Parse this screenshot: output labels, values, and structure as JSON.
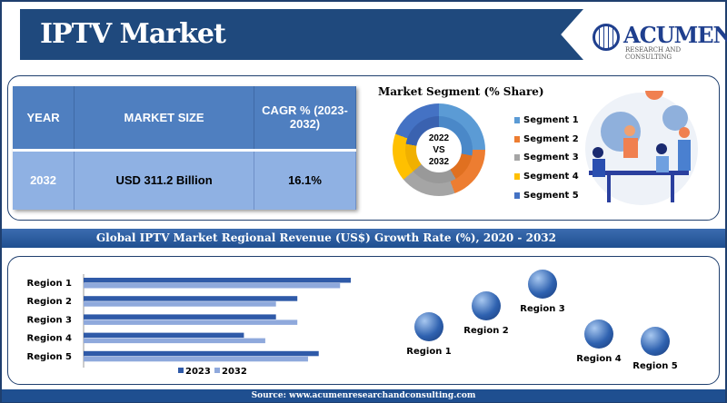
{
  "header": {
    "title": "IPTV Market",
    "logo_name": "ACUMEN",
    "logo_sub": "RESEARCH AND CONSULTING"
  },
  "summary_table": {
    "headers": [
      "YEAR",
      "MARKET SIZE",
      "CAGR % (2023-2032)"
    ],
    "row": [
      "2032",
      "USD 311.2 Billion",
      "16.1%"
    ]
  },
  "segment": {
    "title": "Market Segment (% Share)",
    "center_label": [
      "2022",
      "VS",
      "2032"
    ],
    "legend": [
      {
        "label": "Segment 1",
        "color": "#5b9bd5"
      },
      {
        "label": "Segment 2",
        "color": "#ed7d31"
      },
      {
        "label": "Segment 3",
        "color": "#a5a5a5"
      },
      {
        "label": "Segment 4",
        "color": "#ffc000"
      },
      {
        "label": "Segment 5",
        "color": "#4472c4"
      }
    ]
  },
  "section_title": "Global IPTV Market Regional Revenue (US$) Growth Rate (%), 2020 - 2032",
  "chart_data": {
    "type": "bar",
    "orientation": "horizontal",
    "categories": [
      "Region 1",
      "Region 2",
      "Region 3",
      "Region 4",
      "Region 5"
    ],
    "series": [
      {
        "name": "2023",
        "color": "#2f5aa8",
        "values": [
          100,
          80,
          72,
          60,
          88
        ]
      },
      {
        "name": "2032",
        "color": "#8fa9dc",
        "values": [
          96,
          72,
          80,
          68,
          84
        ]
      }
    ],
    "xlim": [
      0,
      100
    ],
    "legend_position": "bottom",
    "note": "relative lengths, no axis values shown"
  },
  "regions_map": [
    "Region 1",
    "Region 2",
    "Region 3",
    "Region 4",
    "Region 5"
  ],
  "footer": "Source: www.acumenresearchandconsulting.com"
}
